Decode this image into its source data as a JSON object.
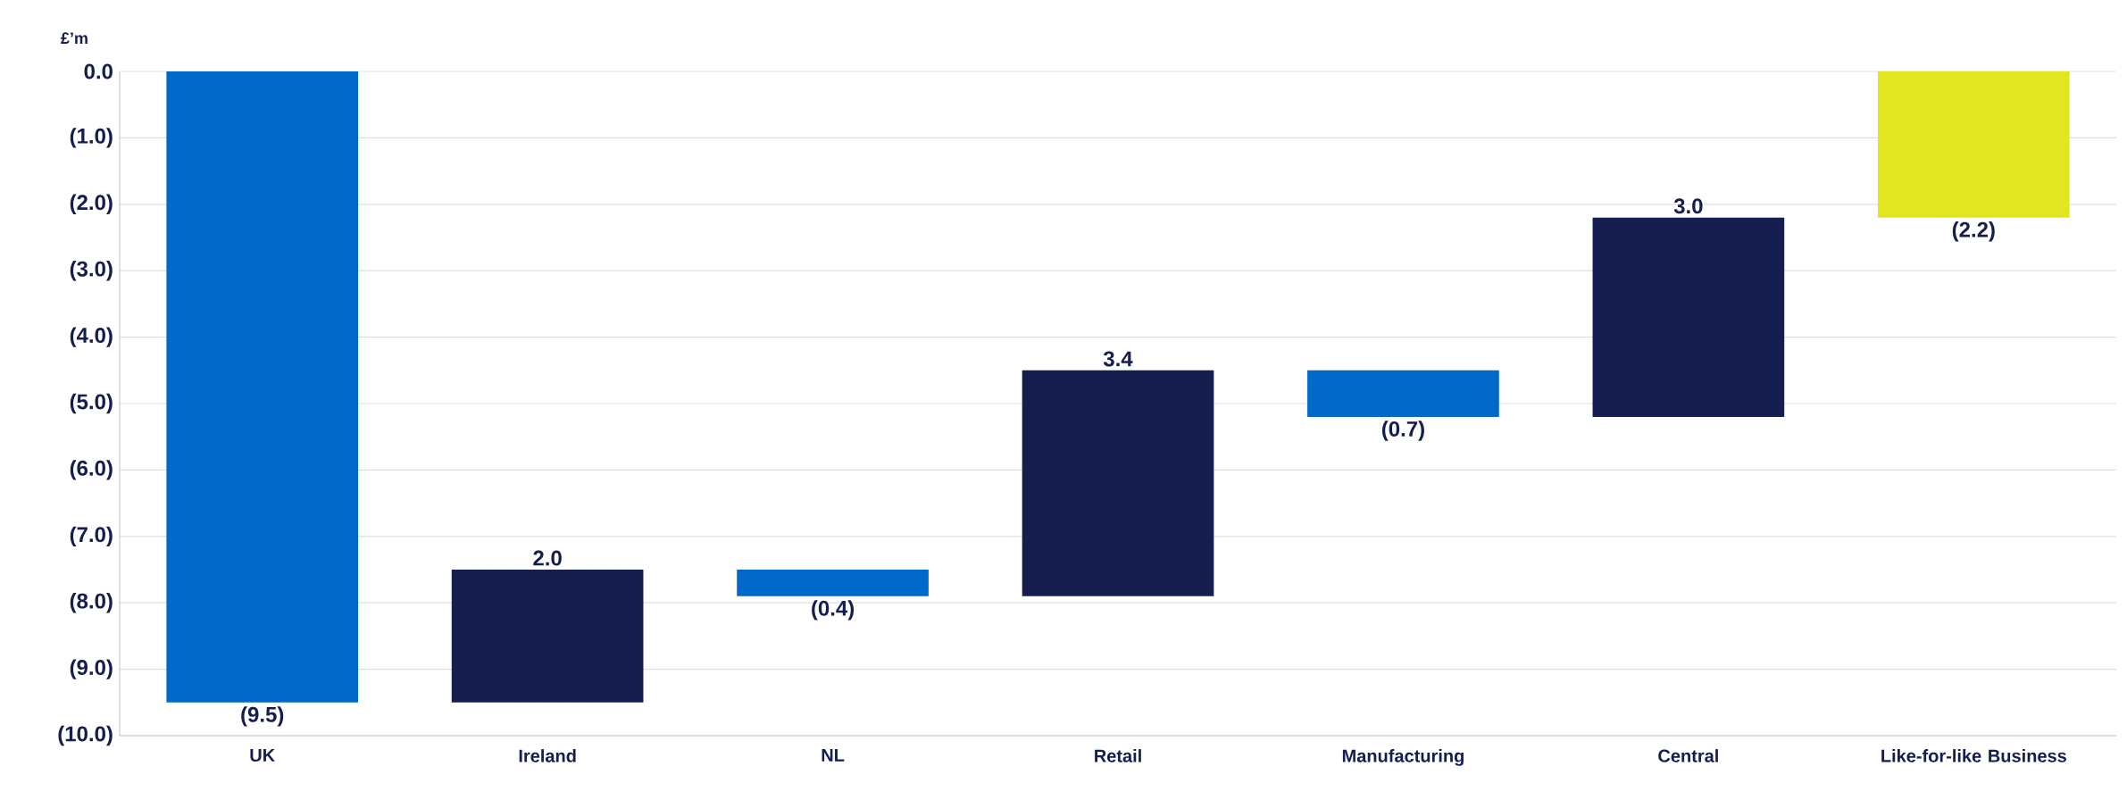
{
  "chart_data": {
    "type": "bar",
    "ylabel": "£’m",
    "categories": [
      "UK",
      "Ireland",
      "NL",
      "Retail",
      "Manufacturing",
      "Central",
      "Like-for-like Business"
    ],
    "base": [
      0,
      -9.5,
      -7.5,
      -7.9,
      -4.5,
      -5.2,
      0
    ],
    "values": [
      -9.5,
      2.0,
      -0.4,
      3.4,
      -0.7,
      3.0,
      -2.2
    ],
    "value_labels": [
      "(9.5)",
      "2.0",
      "(0.4)",
      "3.4",
      "(0.7)",
      "3.0",
      "(2.2)"
    ],
    "colors": [
      "#0068c9",
      "#161d4f",
      "#0068c9",
      "#161d4f",
      "#0068c9",
      "#161d4f",
      "#e1e621"
    ],
    "ylim": [
      -10,
      0
    ],
    "yticks": [
      {
        "value": 0,
        "label": "0.0"
      },
      {
        "value": -1,
        "label": "(1.0)"
      },
      {
        "value": -2,
        "label": "(2.0)"
      },
      {
        "value": -3,
        "label": "(3.0)"
      },
      {
        "value": -4,
        "label": "(4.0)"
      },
      {
        "value": -5,
        "label": "(5.0)"
      },
      {
        "value": -6,
        "label": "(6.0)"
      },
      {
        "value": -7,
        "label": "(7.0)"
      },
      {
        "value": -8,
        "label": "(8.0)"
      },
      {
        "value": -9,
        "label": "(9.0)"
      },
      {
        "value": -10,
        "label": "(10.0)"
      }
    ],
    "grid": "y"
  }
}
